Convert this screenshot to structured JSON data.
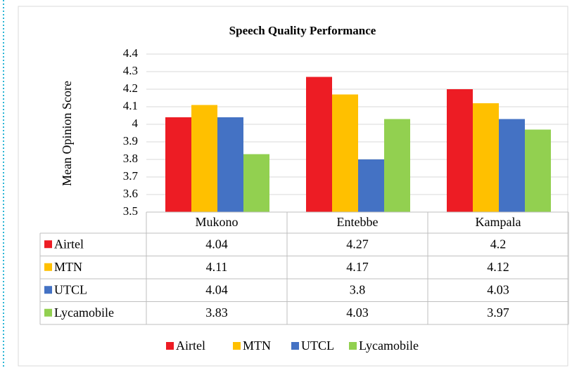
{
  "chart_data": {
    "type": "bar",
    "title": "Speech Quality Performance",
    "y_label": "Mean Opinion Score",
    "categories": [
      "Mukono",
      "Entebbe",
      "Kampala"
    ],
    "series": [
      {
        "name": "Airtel",
        "color": "#ed1c24",
        "values": [
          4.04,
          4.27,
          4.2
        ]
      },
      {
        "name": "MTN",
        "color": "#ffc000",
        "values": [
          4.11,
          4.17,
          4.12
        ]
      },
      {
        "name": "UTCL",
        "color": "#4472c4",
        "values": [
          4.04,
          3.8,
          4.03
        ]
      },
      {
        "name": "Lycamobile",
        "color": "#92d050",
        "values": [
          3.83,
          4.03,
          3.97
        ]
      }
    ],
    "ylim": [
      3.5,
      4.4
    ],
    "yticks": [
      3.5,
      3.6,
      3.7,
      3.8,
      3.9,
      4,
      4.1,
      4.2,
      4.3,
      4.4
    ],
    "grid": true,
    "legend": "bottom",
    "data_table": true
  }
}
